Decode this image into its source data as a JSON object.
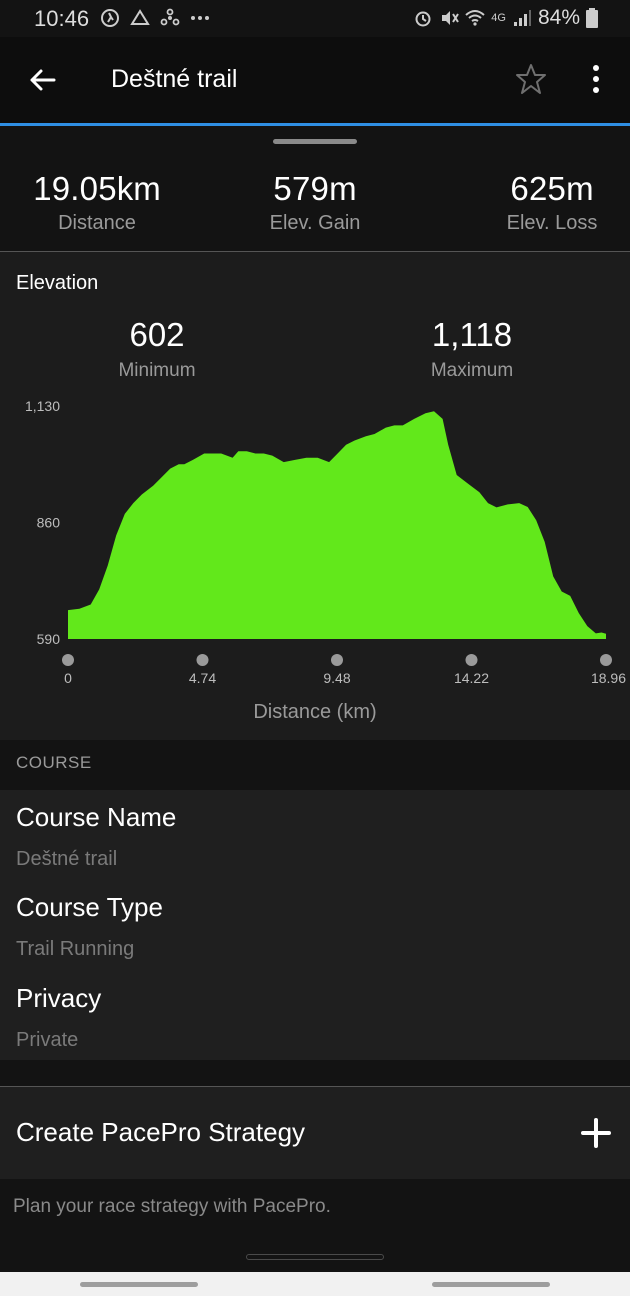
{
  "status_bar": {
    "time": "10:46",
    "battery": "84%",
    "network": "4G",
    "icons": [
      "walking-icon",
      "drive-icon",
      "share-icon",
      "more-dots-icon",
      "alarm-icon",
      "mute-icon",
      "wifi-icon",
      "signal-icon",
      "battery-icon"
    ]
  },
  "app_bar": {
    "title": "Deštné trail",
    "back_icon": "arrow-left-icon",
    "star_icon": "star-outline-icon",
    "more_icon": "more-vertical-icon"
  },
  "stats": {
    "distance": {
      "value": "19.05",
      "unit": "km",
      "label": "Distance"
    },
    "elev_gain": {
      "value": "579",
      "unit": "m",
      "label": "Elev. Gain"
    },
    "elev_loss": {
      "value": "625",
      "unit": "m",
      "label": "Elev. Loss"
    }
  },
  "elevation": {
    "title": "Elevation",
    "minimum": {
      "value": "602",
      "label": "Minimum"
    },
    "maximum": {
      "value": "1,118",
      "label": "Maximum"
    }
  },
  "chart_data": {
    "type": "area",
    "title": "",
    "xlabel": "Distance (km)",
    "ylabel": "",
    "xlim": [
      0,
      18.96
    ],
    "ylim": [
      590,
      1130
    ],
    "x_ticks": [
      "0",
      "4.74",
      "9.48",
      "14.22",
      "18.96"
    ],
    "y_ticks": [
      "1,130",
      "860",
      "590"
    ],
    "fill_color": "#62e81b",
    "series": [
      {
        "x": [
          0,
          0.4,
          0.8,
          1.1,
          1.4,
          1.7,
          2.0,
          2.3,
          2.6,
          3.0,
          3.3,
          3.6,
          3.9,
          4.1,
          4.4,
          4.8,
          5.1,
          5.4,
          5.8,
          6.0,
          6.3,
          6.6,
          6.9,
          7.2,
          7.6,
          8.0,
          8.4,
          8.8,
          9.2,
          9.5,
          9.8,
          10.1,
          10.5,
          10.8,
          11.2,
          11.5,
          11.8,
          12.2,
          12.6,
          12.9,
          13.2,
          13.4,
          13.7,
          14.1,
          14.5,
          14.8,
          15.1,
          15.5,
          15.9,
          16.2,
          16.5,
          16.8,
          17.1,
          17.4,
          17.7,
          18.0,
          18.3,
          18.6,
          18.8,
          18.96
        ],
        "values": [
          657,
          660,
          670,
          705,
          760,
          830,
          880,
          905,
          925,
          945,
          965,
          985,
          995,
          995,
          1005,
          1020,
          1020,
          1020,
          1010,
          1025,
          1025,
          1020,
          1020,
          1015,
          1000,
          1005,
          1010,
          1010,
          1000,
          1020,
          1040,
          1050,
          1060,
          1065,
          1080,
          1085,
          1085,
          1100,
          1113,
          1118,
          1100,
          1040,
          970,
          950,
          930,
          905,
          895,
          902,
          905,
          896,
          865,
          815,
          735,
          700,
          690,
          650,
          620,
          603,
          605,
          602
        ]
      }
    ]
  },
  "course": {
    "header": "COURSE",
    "fields": [
      {
        "name": "Course Name",
        "value": "Deštné trail"
      },
      {
        "name": "Course Type",
        "value": "Trail Running"
      },
      {
        "name": "Privacy",
        "value": "Private"
      }
    ]
  },
  "pacepro": {
    "label": "Create PacePro Strategy",
    "icon": "plus-icon",
    "description": "Plan your race strategy with PacePro."
  }
}
